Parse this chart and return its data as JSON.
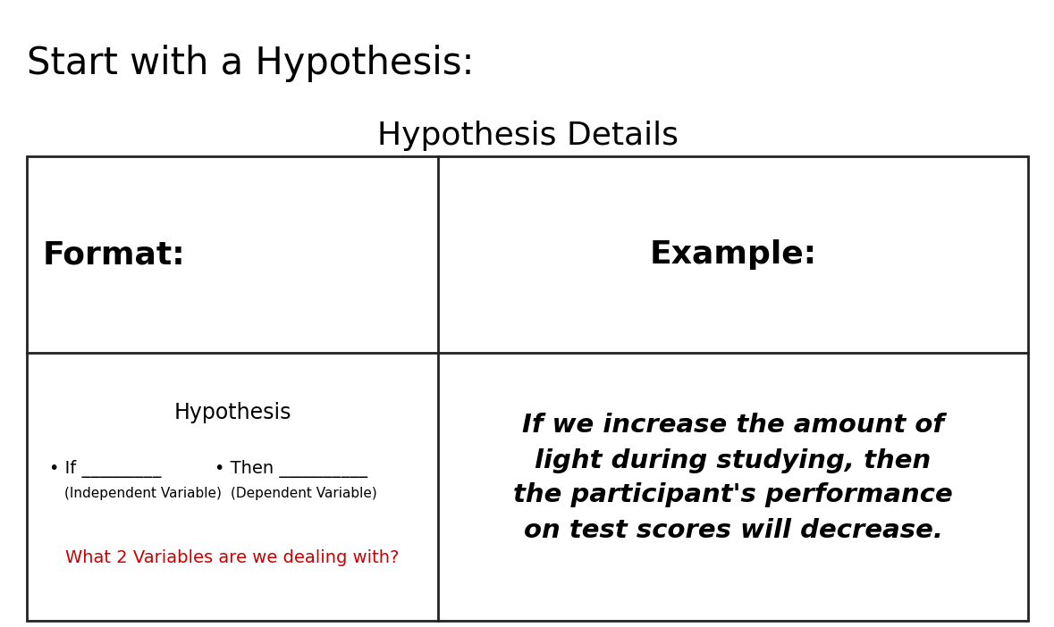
{
  "title": "Start with a Hypothesis:",
  "table_title": "Hypothesis Details",
  "bg_color": "#ffffff",
  "title_color": "#000000",
  "table_title_color": "#000000",
  "title_fontsize": 30,
  "table_title_fontsize": 26,
  "format_label": "Format:",
  "example_label": "Example:",
  "hypothesis_label": "Hypothesis",
  "if_line": "If _________",
  "then_line": "Then __________",
  "indep_label": "(Independent Variable)",
  "dep_label": "(Dependent Variable)",
  "question": "What 2 Variables are we dealing with?",
  "question_color": "#cc0000",
  "example_text": "If we increase the amount of\nlight during studying, then\nthe participant's performance\non test scores will decrease.",
  "format_fontsize": 26,
  "example_label_fontsize": 26,
  "hypothesis_fontsize": 17,
  "if_then_fontsize": 14,
  "sublabel_fontsize": 11,
  "question_fontsize": 14,
  "example_text_fontsize": 21,
  "line_color": "#222222",
  "line_width": 2.0
}
